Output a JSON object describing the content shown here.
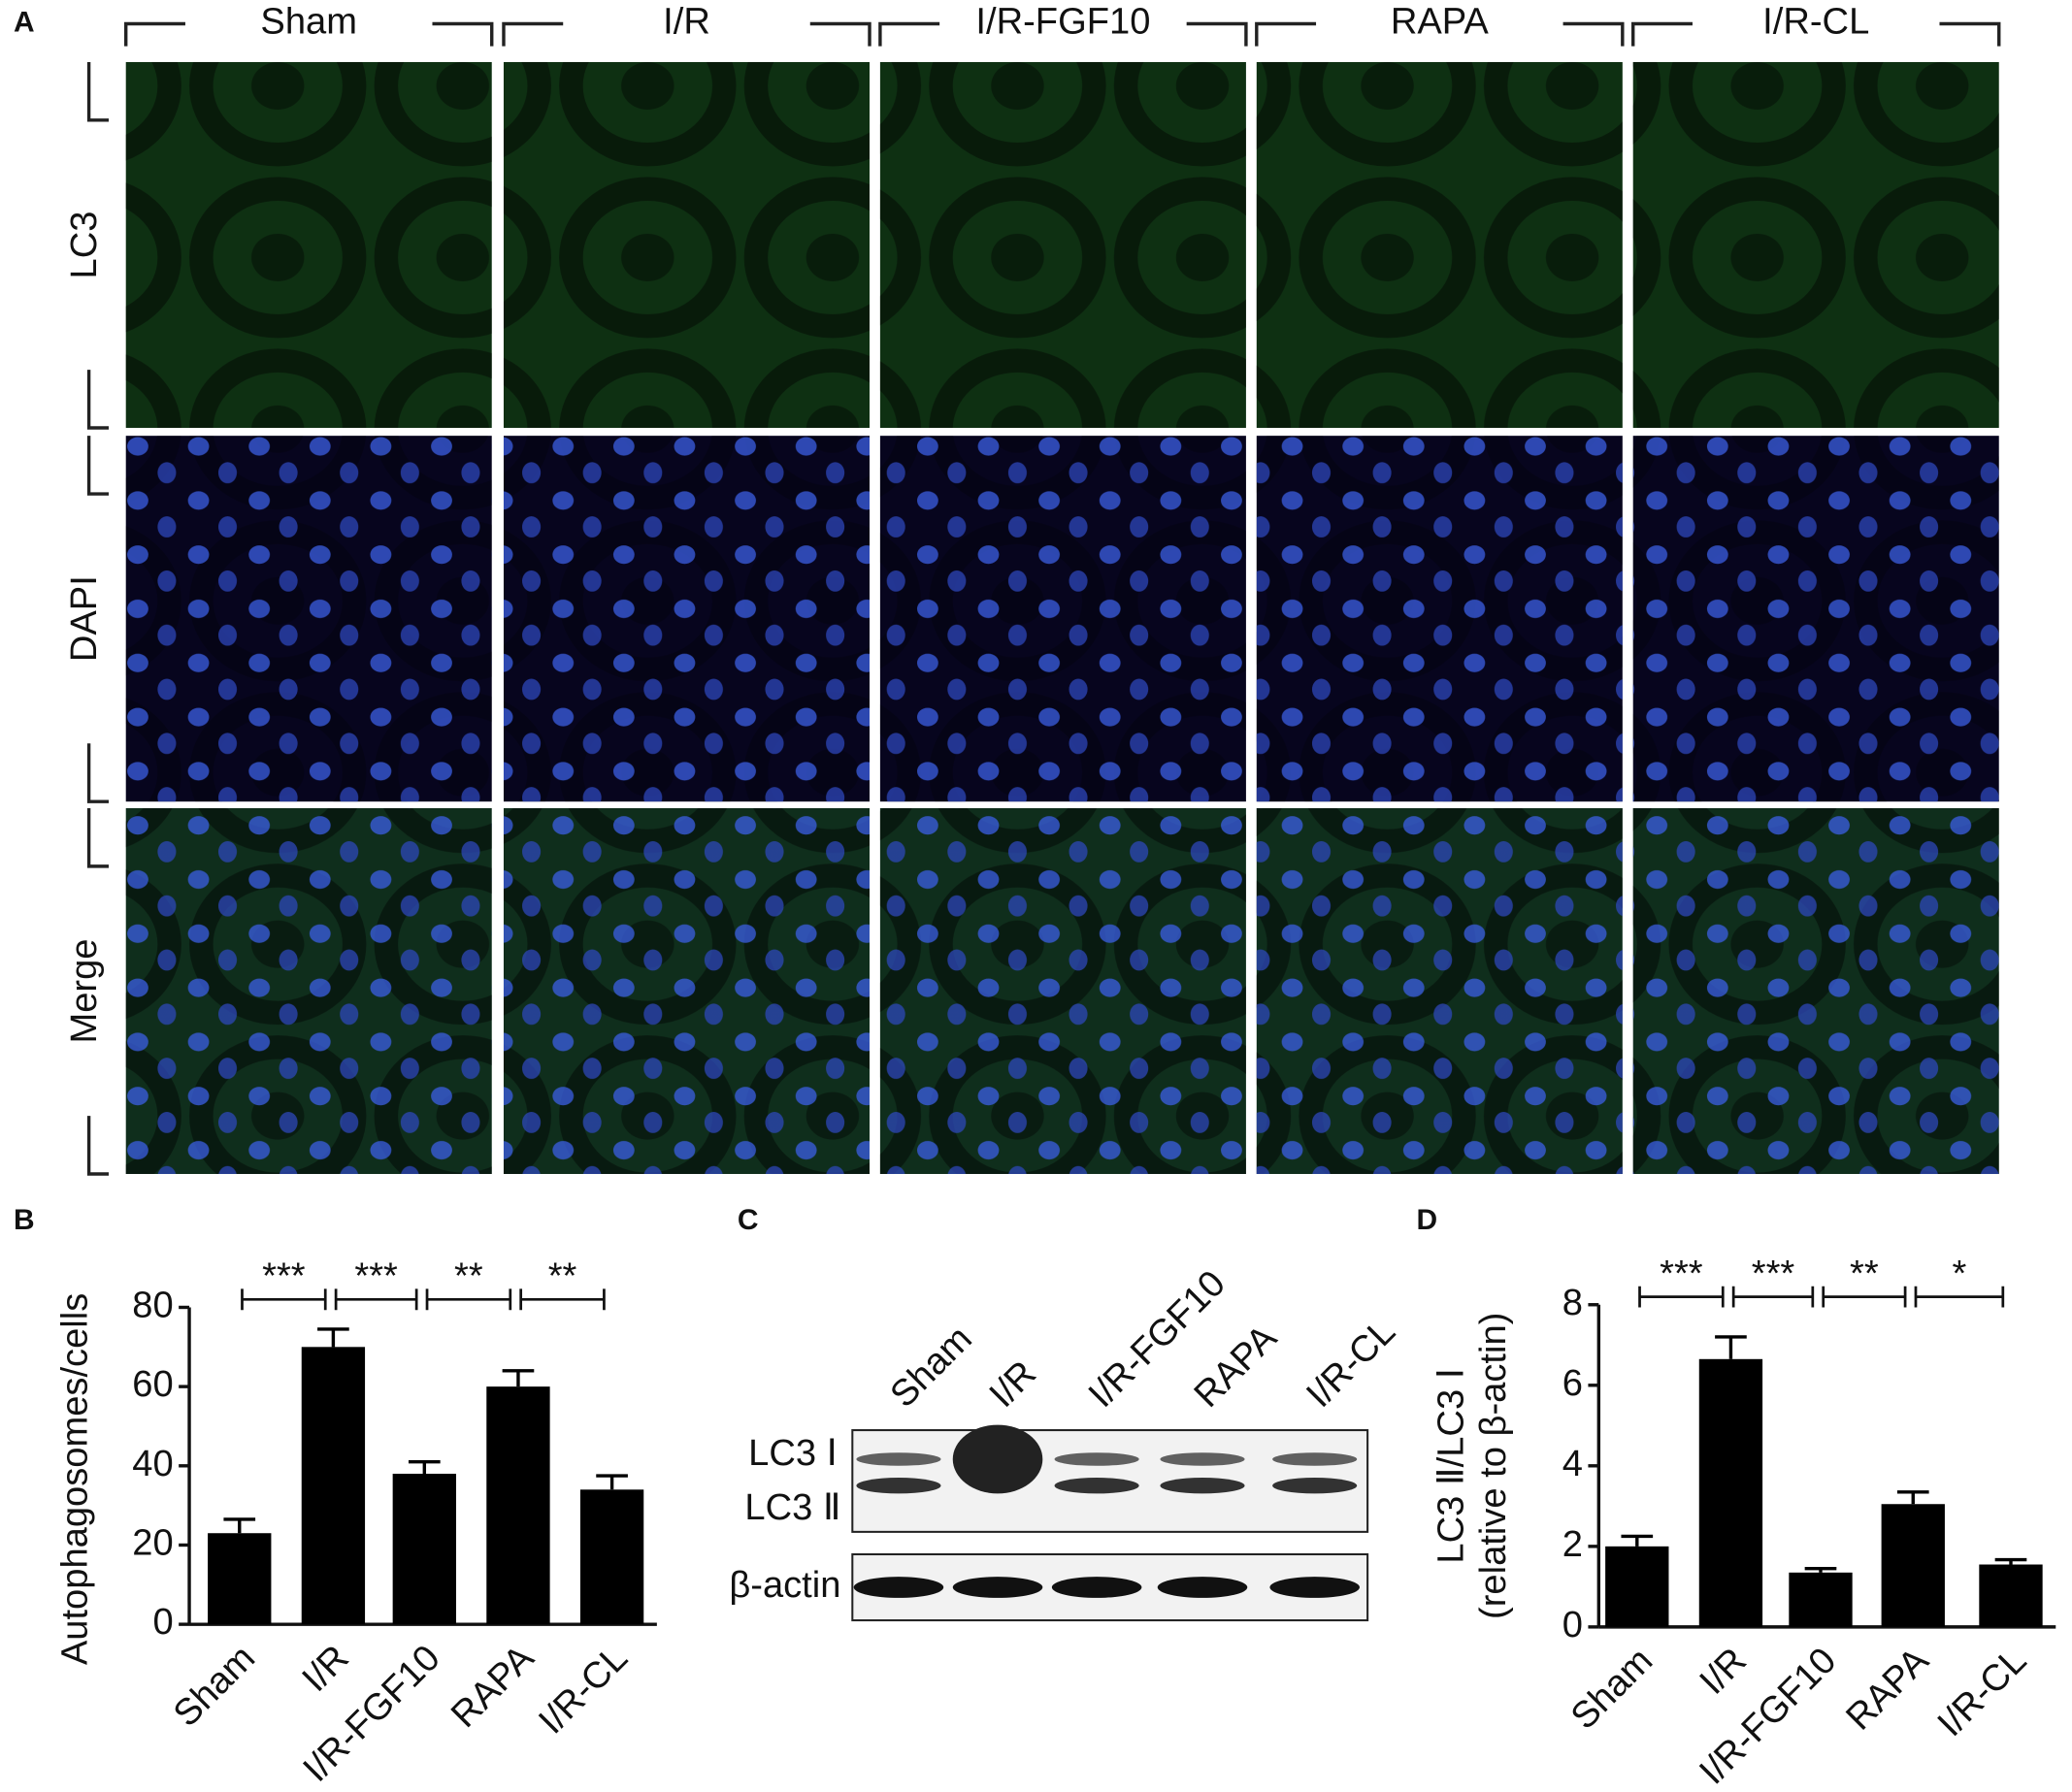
{
  "panel_a": {
    "letter": "A",
    "columns": [
      "Sham",
      "I/R",
      "I/R-FGF10",
      "RAPA",
      "I/R-CL"
    ],
    "rows": [
      {
        "label": "LC3",
        "color": "#2ca02c"
      },
      {
        "label": "DAPI",
        "color": "#2b3a9c"
      },
      {
        "label": "Merge",
        "color": "#222222"
      }
    ]
  },
  "panel_c": {
    "letter": "C",
    "lanes": [
      "Sham",
      "I/R",
      "I/R-FGF10",
      "RAPA",
      "I/R-CL"
    ],
    "band_labels": [
      "LC3 Ⅰ",
      "LC3 Ⅱ",
      "β-actin"
    ]
  },
  "chart_data": [
    {
      "type": "bar",
      "letter": "B",
      "ylabel": "Autophagosomes/cells",
      "categories": [
        "Sham",
        "I/R",
        "I/R-FGF10",
        "RAPA",
        "I/R-CL"
      ],
      "values": [
        23,
        70,
        38,
        60,
        34
      ],
      "errors": [
        3.5,
        4.5,
        3,
        4,
        3.5
      ],
      "color": "#000000",
      "ylim": [
        0,
        80
      ],
      "yticks": [
        0,
        20,
        40,
        60,
        80
      ],
      "significance": [
        "***",
        "***",
        "**",
        "**"
      ]
    },
    {
      "type": "bar",
      "letter": "D",
      "ylabel": [
        "LC3 Ⅱ/LC3 Ⅰ",
        "(relative to β-actin)"
      ],
      "categories": [
        "Sham",
        "I/R",
        "I/R-FGF10",
        "RAPA",
        "I/R-CL"
      ],
      "values": [
        2.0,
        6.65,
        1.35,
        3.05,
        1.55
      ],
      "errors": [
        0.25,
        0.55,
        0.1,
        0.3,
        0.12
      ],
      "color": "#000000",
      "ylim": [
        0,
        8
      ],
      "yticks": [
        0,
        2,
        4,
        6,
        8
      ],
      "significance": [
        "***",
        "***",
        "**",
        "*"
      ]
    }
  ]
}
